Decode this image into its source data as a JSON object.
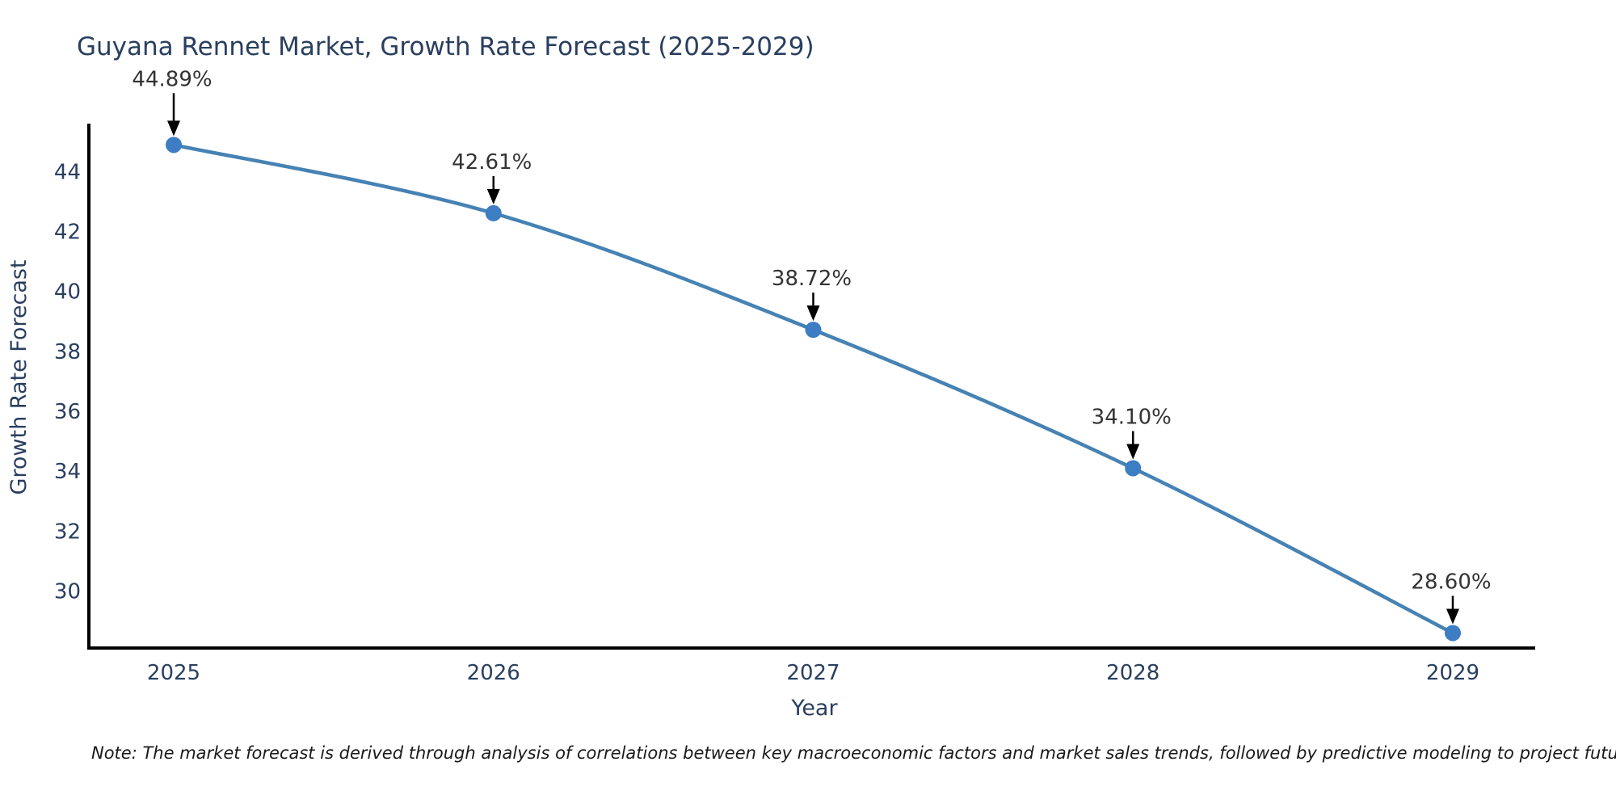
{
  "chart_data": {
    "type": "line",
    "title": "Guyana Rennet Market, Growth Rate Forecast (2025-2029)",
    "xlabel": "Year",
    "ylabel": "Growth Rate Forecast",
    "categories": [
      "2025",
      "2026",
      "2027",
      "2028",
      "2029"
    ],
    "values": [
      44.89,
      42.61,
      38.72,
      34.1,
      28.6
    ],
    "point_labels": [
      "44.89%",
      "42.61%",
      "38.72%",
      "34.10%",
      "28.60%"
    ],
    "yticks": [
      30,
      32,
      34,
      36,
      38,
      40,
      42,
      44
    ],
    "ylim": [
      28.1,
      45.6
    ],
    "grid": false,
    "legend": "none",
    "marker": "circle",
    "annotation_style": "value-label-with-down-arrow",
    "colors": {
      "line": "#4682b4",
      "marker": "#3c7dc3",
      "axis": "#000000",
      "title_text": "#2a3f5f",
      "tick_text": "#2a3f5f",
      "axis_label_text": "#2a3f5f",
      "annotation_text": "#333333",
      "arrow": "#000000",
      "note_text": "#1a1a1a",
      "background": "#ffffff"
    }
  },
  "note": {
    "text": "Note: The market forecast is derived through analysis of correlations between key macroeconomic factors and market sales trends, followed by predictive modeling to project future sales"
  }
}
